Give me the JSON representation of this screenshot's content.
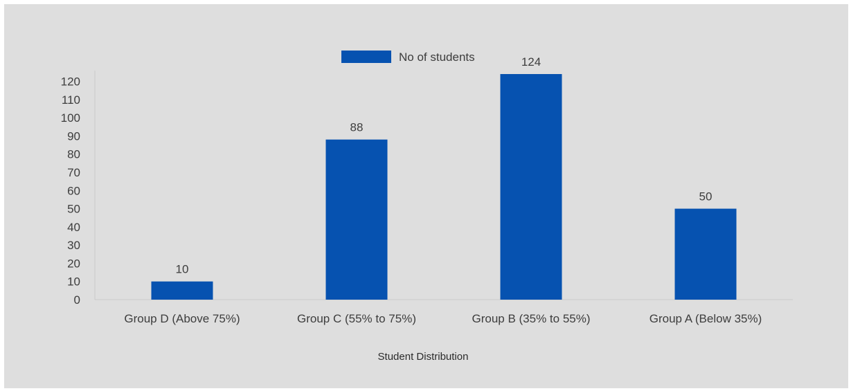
{
  "chart_data": {
    "type": "bar",
    "categories": [
      "Group D (Above 75%)",
      "Group C (55% to 75%)",
      "Group B (35% to 55%)",
      "Group A (Below 35%)"
    ],
    "series": [
      {
        "name": "No of students",
        "values": [
          10,
          88,
          124,
          50
        ],
        "color": "#0652b0"
      }
    ],
    "xlabel": "Student Distribution",
    "ylabel": "",
    "ylim": [
      0,
      124
    ],
    "yticks": [
      0,
      10,
      20,
      30,
      40,
      50,
      60,
      70,
      80,
      90,
      100,
      110,
      120
    ],
    "grid": false,
    "legend_position": "top-center",
    "data_labels": true
  }
}
